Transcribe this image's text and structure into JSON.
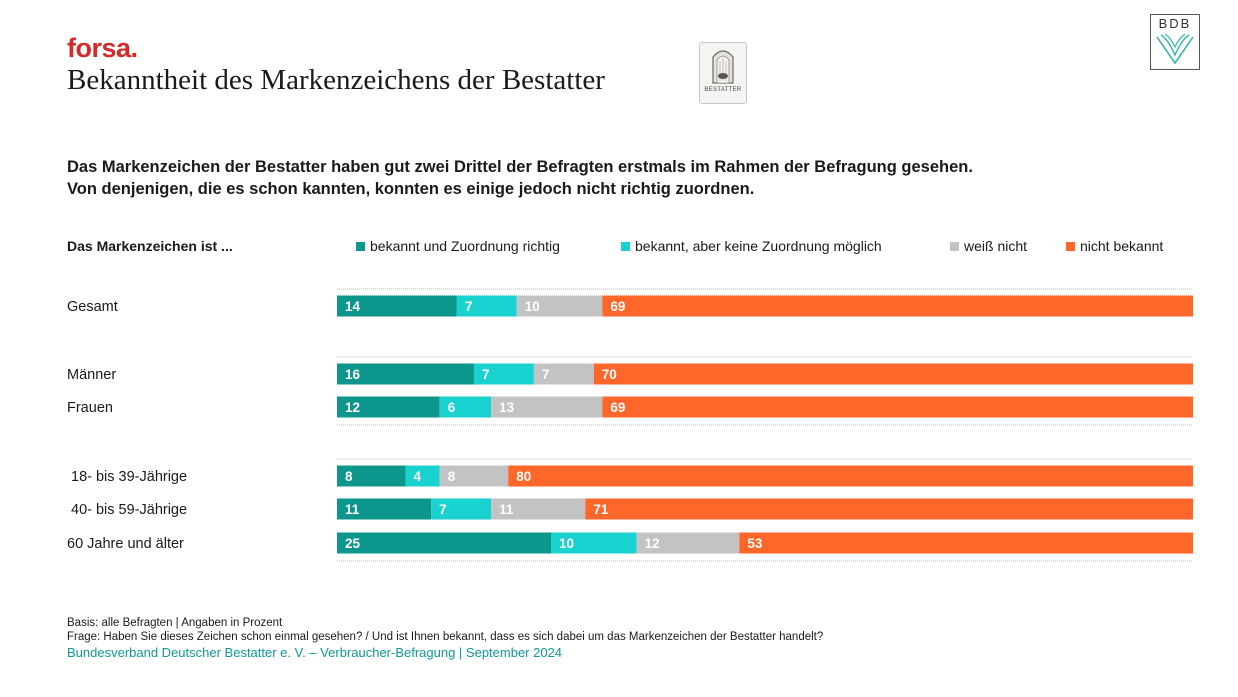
{
  "brand": "forsa.",
  "title": "Bekanntheit des Markenzeichens der Bestatter",
  "mark_logo_text": "BESTATTER",
  "bdb_logo_text": "BDB",
  "headline": {
    "line1": "Das Markenzeichen der Bestatter haben gut zwei Drittel der Befragten erstmals im Rahmen der Befragung gesehen.",
    "line2": "Von denjenigen, die es schon kannten, konnten es einige jedoch nicht richtig zuordnen."
  },
  "colors": {
    "teal_dark": "#0c968c",
    "teal_light": "#19d2d0",
    "gray": "#c3c3c3",
    "orange": "#ff672a",
    "brand_red": "#d42a2a",
    "source_teal": "#0e9a96"
  },
  "chart_data": {
    "type": "bar",
    "orientation": "horizontal",
    "stacked": true,
    "legend_title": "Das Markenzeichen ist ...",
    "categories": [
      "Gesamt",
      "Männer",
      "Frauen",
      "18- bis 39-Jährige",
      "40- bis 59-Jährige",
      "60 Jahre und älter"
    ],
    "series": [
      {
        "name": "bekannt und Zuordnung richtig",
        "color": "#0c968c",
        "values": [
          14,
          16,
          12,
          8,
          11,
          25
        ]
      },
      {
        "name": "bekannt, aber keine Zuordnung möglich",
        "color": "#19d2d0",
        "values": [
          7,
          7,
          6,
          4,
          7,
          10
        ]
      },
      {
        "name": "weiß nicht",
        "color": "#c3c3c3",
        "values": [
          10,
          7,
          13,
          8,
          11,
          12
        ]
      },
      {
        "name": "nicht bekannt",
        "color": "#ff672a",
        "values": [
          69,
          70,
          69,
          80,
          71,
          53
        ]
      }
    ],
    "xlim": [
      0,
      100
    ],
    "unit": "Prozent"
  },
  "footer": {
    "basis": "Basis: alle Befragten | Angaben in Prozent",
    "frage": "Frage: Haben Sie dieses Zeichen schon einmal gesehen? / Und ist Ihnen bekannt, dass es sich dabei um das Markenzeichen der Bestatter handelt?",
    "source": "Bundesverband Deutscher Bestatter e. V. – Verbraucher-Befragung | September 2024"
  }
}
